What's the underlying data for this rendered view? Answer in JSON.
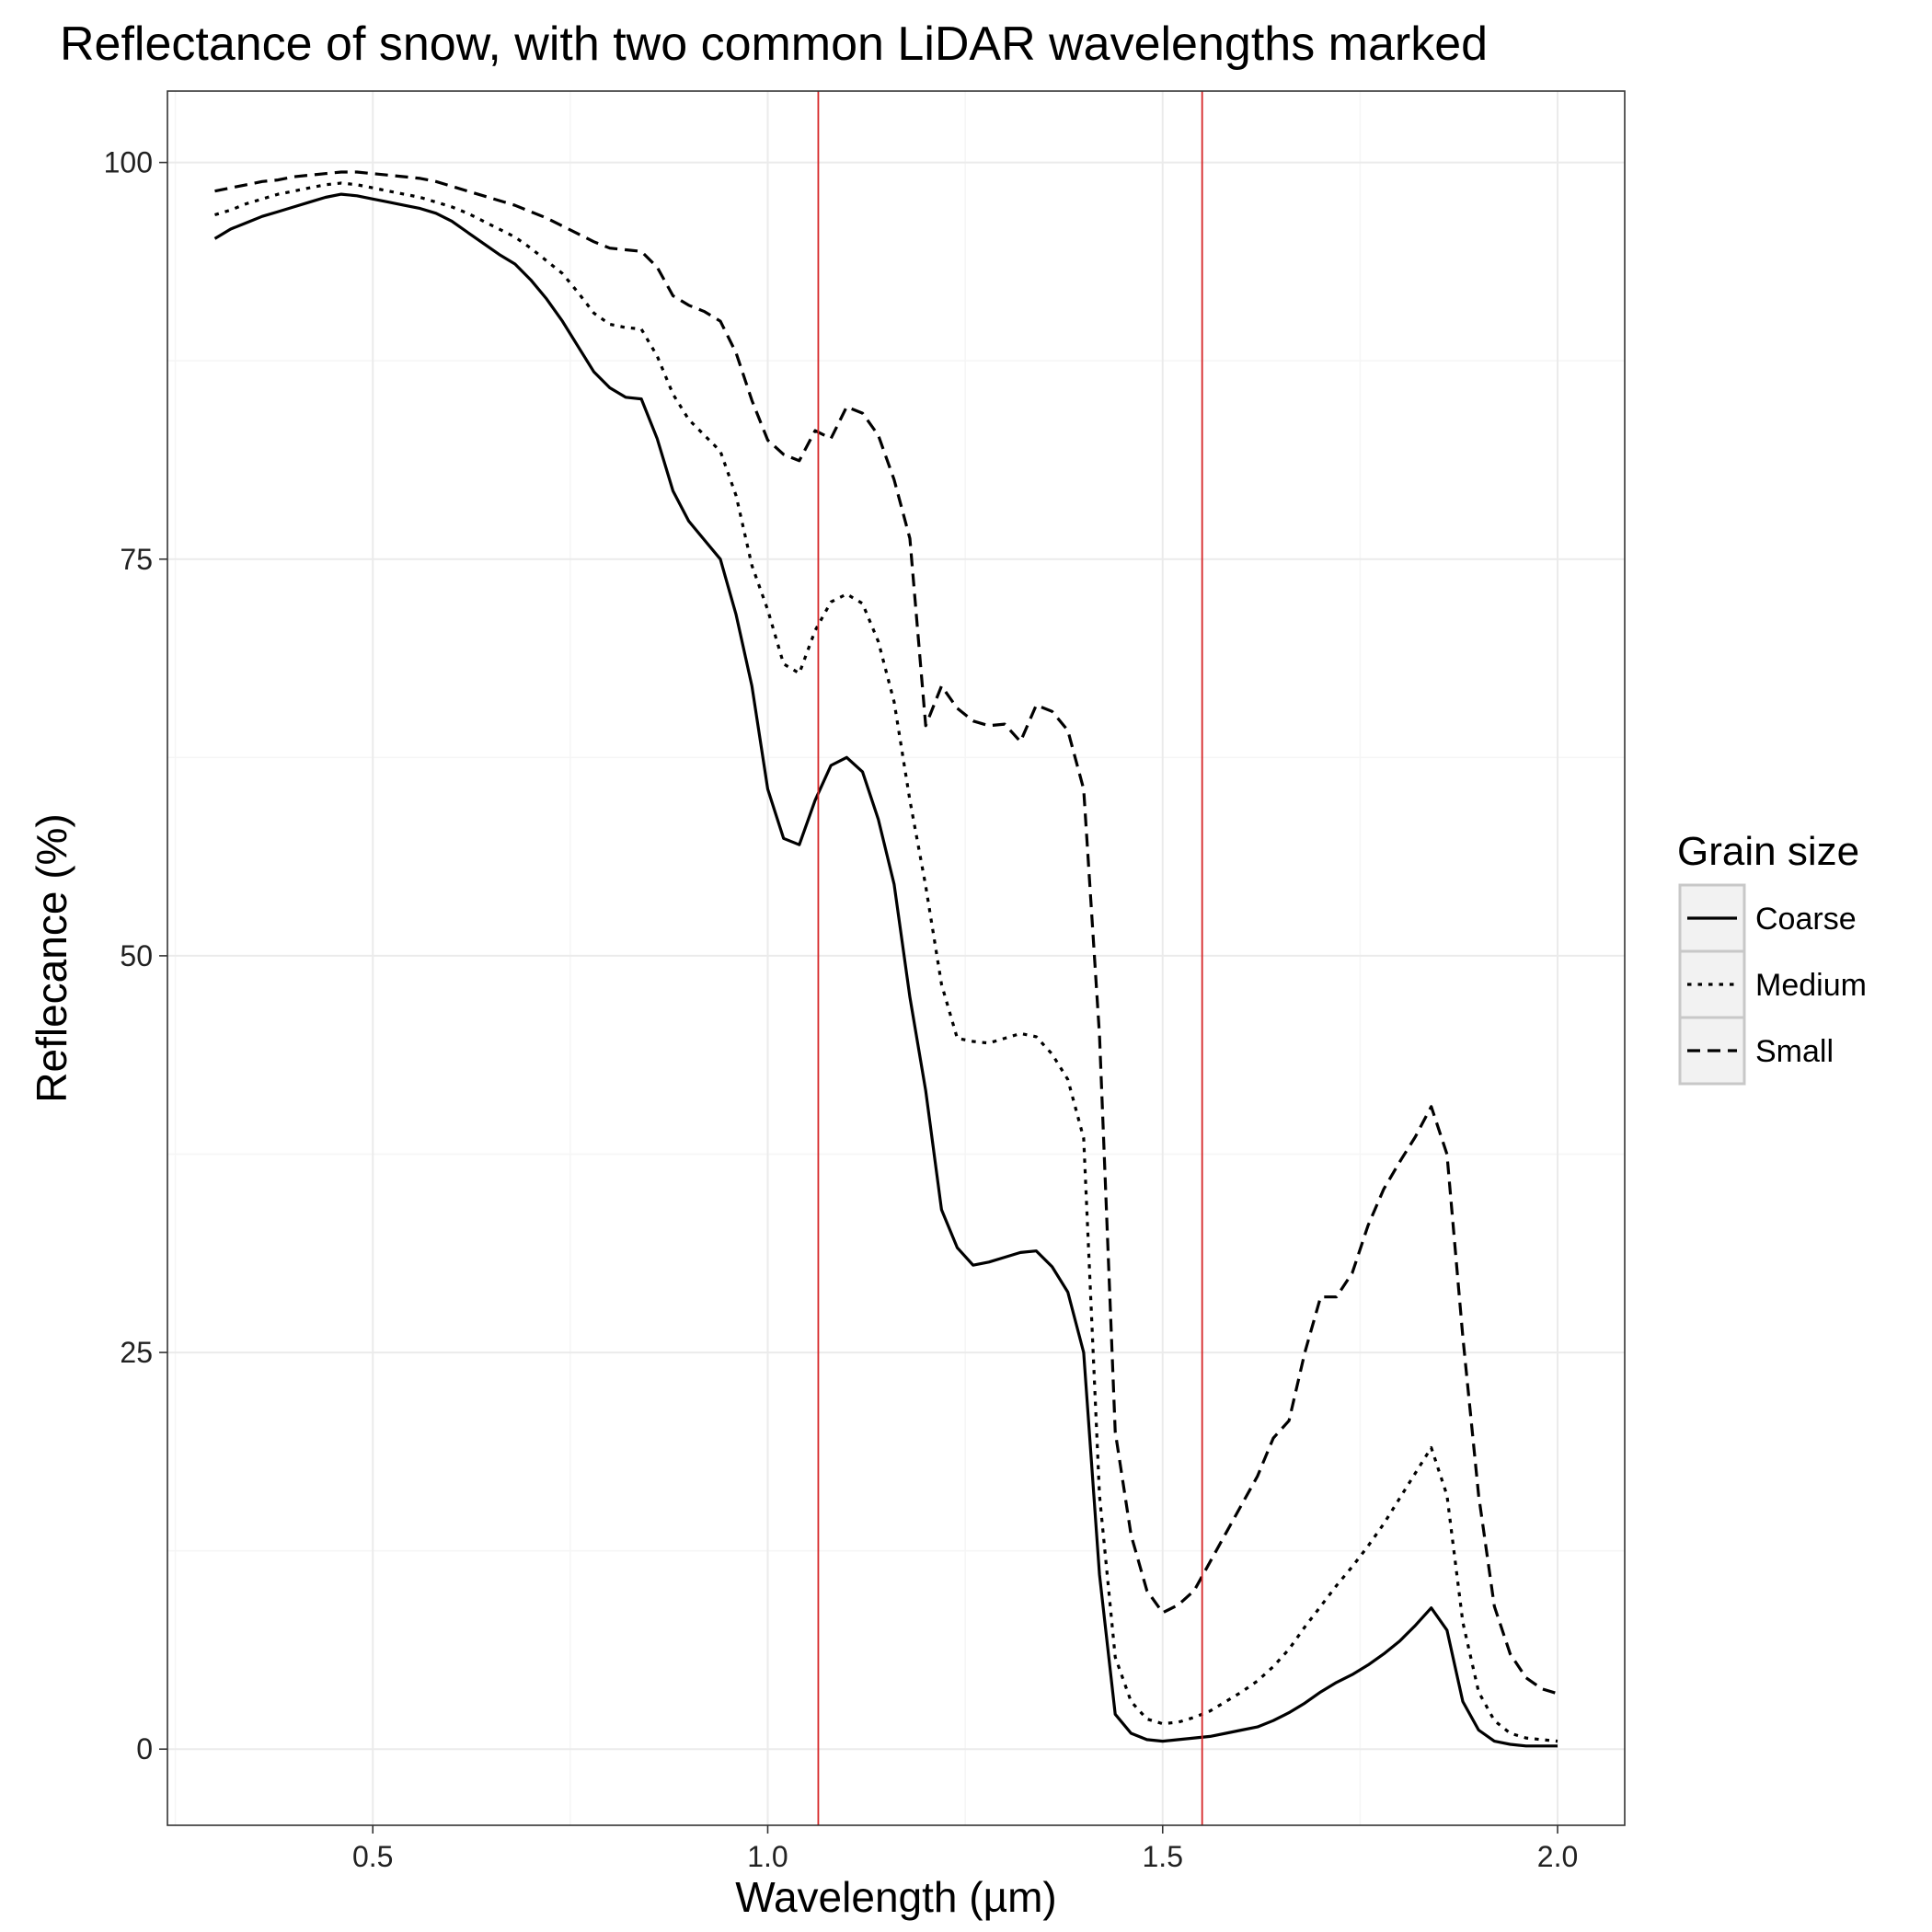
{
  "chart_data": {
    "type": "line",
    "title": "Reflectance of snow, with two common LiDAR wavelengths marked",
    "xlabel": "Wavelength (µm)",
    "ylabel": "Reflecance (%)",
    "xlim": [
      0.24,
      2.085
    ],
    "ylim": [
      -4.8,
      104.5
    ],
    "x_ticks": [
      0.5,
      1.0,
      1.5,
      2.0
    ],
    "x_tick_labels": [
      "0.5",
      "1.0",
      "1.5",
      "2.0"
    ],
    "y_ticks": [
      0,
      25,
      50,
      75,
      100
    ],
    "y_tick_labels": [
      "0",
      "25",
      "50",
      "75",
      "100"
    ],
    "grid": true,
    "background": "#ffffff",
    "grid_color": "#ebebeb",
    "line_color": "#000000",
    "marker_color": "#d62728",
    "reference_lines": [
      {
        "axis": "x",
        "value": 1.064
      },
      {
        "axis": "x",
        "value": 1.55
      }
    ],
    "legend": {
      "title": "Grain size",
      "placement": "right"
    },
    "series": [
      {
        "name": "Coarse",
        "dash": "solid",
        "x": [
          0.3,
          0.32,
          0.34,
          0.36,
          0.38,
          0.4,
          0.42,
          0.44,
          0.46,
          0.48,
          0.5,
          0.52,
          0.54,
          0.56,
          0.58,
          0.6,
          0.62,
          0.64,
          0.66,
          0.68,
          0.7,
          0.72,
          0.74,
          0.76,
          0.78,
          0.8,
          0.82,
          0.84,
          0.86,
          0.88,
          0.9,
          0.92,
          0.94,
          0.96,
          0.98,
          1.0,
          1.02,
          1.04,
          1.06,
          1.08,
          1.1,
          1.12,
          1.14,
          1.16,
          1.18,
          1.2,
          1.22,
          1.24,
          1.26,
          1.28,
          1.3,
          1.32,
          1.34,
          1.36,
          1.38,
          1.4,
          1.42,
          1.44,
          1.46,
          1.48,
          1.5,
          1.52,
          1.54,
          1.56,
          1.58,
          1.6,
          1.62,
          1.64,
          1.66,
          1.68,
          1.7,
          1.72,
          1.74,
          1.76,
          1.78,
          1.8,
          1.82,
          1.84,
          1.86,
          1.88,
          1.9,
          1.92,
          1.94,
          1.96,
          1.98,
          2.0
        ],
        "y": [
          95.2,
          95.8,
          96.2,
          96.6,
          96.9,
          97.2,
          97.5,
          97.8,
          98.0,
          97.9,
          97.7,
          97.5,
          97.3,
          97.1,
          96.8,
          96.3,
          95.6,
          94.9,
          94.2,
          93.6,
          92.6,
          91.4,
          90.0,
          88.4,
          86.8,
          85.8,
          85.2,
          85.1,
          82.6,
          79.3,
          77.4,
          76.2,
          75.0,
          71.5,
          67.0,
          60.5,
          57.4,
          57.0,
          59.8,
          62.0,
          62.5,
          61.6,
          58.6,
          54.5,
          47.4,
          41.5,
          34.0,
          31.6,
          30.5,
          30.7,
          31.0,
          31.3,
          31.4,
          30.4,
          28.8,
          25.0,
          11.0,
          2.2,
          1.0,
          0.6,
          0.5,
          0.6,
          0.7,
          0.8,
          1.0,
          1.2,
          1.4,
          1.8,
          2.3,
          2.9,
          3.6,
          4.2,
          4.7,
          5.3,
          6.0,
          6.8,
          7.8,
          8.9,
          7.5,
          3.0,
          1.2,
          0.5,
          0.3,
          0.2,
          0.2,
          0.2
        ]
      },
      {
        "name": "Medium",
        "dash": "dotted",
        "x": [
          0.3,
          0.32,
          0.34,
          0.36,
          0.38,
          0.4,
          0.42,
          0.44,
          0.46,
          0.48,
          0.5,
          0.52,
          0.54,
          0.56,
          0.58,
          0.6,
          0.62,
          0.64,
          0.66,
          0.68,
          0.7,
          0.72,
          0.74,
          0.76,
          0.78,
          0.8,
          0.82,
          0.84,
          0.86,
          0.88,
          0.9,
          0.92,
          0.94,
          0.96,
          0.98,
          1.0,
          1.02,
          1.04,
          1.06,
          1.08,
          1.1,
          1.12,
          1.14,
          1.16,
          1.18,
          1.2,
          1.22,
          1.24,
          1.26,
          1.28,
          1.3,
          1.32,
          1.34,
          1.36,
          1.38,
          1.4,
          1.42,
          1.44,
          1.46,
          1.48,
          1.5,
          1.52,
          1.54,
          1.56,
          1.58,
          1.6,
          1.62,
          1.64,
          1.66,
          1.68,
          1.7,
          1.72,
          1.74,
          1.76,
          1.78,
          1.8,
          1.82,
          1.84,
          1.86,
          1.88,
          1.9,
          1.92,
          1.94,
          1.96,
          1.98,
          2.0
        ],
        "y": [
          96.7,
          97.0,
          97.4,
          97.7,
          98.0,
          98.2,
          98.4,
          98.6,
          98.7,
          98.6,
          98.4,
          98.2,
          98.0,
          97.8,
          97.5,
          97.2,
          96.8,
          96.3,
          95.8,
          95.3,
          94.6,
          93.8,
          93.0,
          91.8,
          90.5,
          89.8,
          89.6,
          89.5,
          87.8,
          85.4,
          83.8,
          82.8,
          81.8,
          79.0,
          74.6,
          71.8,
          68.4,
          67.8,
          70.5,
          72.3,
          72.8,
          72.2,
          69.8,
          66.0,
          59.8,
          54.4,
          48.2,
          44.8,
          44.6,
          44.5,
          44.8,
          45.1,
          44.9,
          43.8,
          42.2,
          38.5,
          16.0,
          5.8,
          3.0,
          1.9,
          1.6,
          1.7,
          2.0,
          2.4,
          3.0,
          3.6,
          4.3,
          5.2,
          6.3,
          7.7,
          9.0,
          10.3,
          11.5,
          12.8,
          14.2,
          15.8,
          17.4,
          19.0,
          16.0,
          8.0,
          3.6,
          1.8,
          1.0,
          0.7,
          0.6,
          0.5
        ]
      },
      {
        "name": "Small",
        "dash": "dashed",
        "x": [
          0.3,
          0.32,
          0.34,
          0.36,
          0.38,
          0.4,
          0.42,
          0.44,
          0.46,
          0.48,
          0.5,
          0.52,
          0.54,
          0.56,
          0.58,
          0.6,
          0.62,
          0.64,
          0.66,
          0.68,
          0.7,
          0.72,
          0.74,
          0.76,
          0.78,
          0.8,
          0.82,
          0.84,
          0.86,
          0.88,
          0.9,
          0.92,
          0.94,
          0.96,
          0.98,
          1.0,
          1.02,
          1.04,
          1.06,
          1.08,
          1.1,
          1.12,
          1.14,
          1.16,
          1.18,
          1.2,
          1.22,
          1.24,
          1.26,
          1.28,
          1.3,
          1.32,
          1.34,
          1.36,
          1.38,
          1.4,
          1.42,
          1.44,
          1.46,
          1.48,
          1.5,
          1.52,
          1.54,
          1.56,
          1.58,
          1.6,
          1.62,
          1.64,
          1.66,
          1.68,
          1.7,
          1.72,
          1.74,
          1.76,
          1.78,
          1.8,
          1.82,
          1.84,
          1.86,
          1.88,
          1.9,
          1.92,
          1.94,
          1.96,
          1.98,
          2.0
        ],
        "y": [
          98.2,
          98.4,
          98.6,
          98.8,
          98.9,
          99.1,
          99.2,
          99.3,
          99.4,
          99.4,
          99.3,
          99.2,
          99.1,
          99.0,
          98.8,
          98.5,
          98.2,
          97.9,
          97.6,
          97.3,
          96.9,
          96.5,
          96.0,
          95.5,
          95.0,
          94.6,
          94.5,
          94.4,
          93.4,
          91.6,
          91.0,
          90.6,
          90.0,
          88.0,
          85.0,
          82.5,
          81.6,
          81.2,
          83.1,
          82.6,
          84.6,
          84.2,
          82.8,
          80.0,
          76.3,
          64.5,
          67.0,
          65.6,
          64.8,
          64.5,
          64.6,
          63.5,
          65.8,
          65.4,
          64.2,
          60.5,
          45.0,
          20.0,
          13.5,
          10.0,
          8.6,
          9.1,
          10.0,
          11.8,
          13.6,
          15.4,
          17.2,
          19.6,
          20.7,
          25.0,
          28.5,
          28.5,
          30.0,
          33.0,
          35.3,
          37.0,
          38.6,
          40.5,
          37.5,
          26.0,
          16.0,
          9.0,
          6.0,
          4.5,
          3.8,
          3.5
        ]
      }
    ]
  }
}
